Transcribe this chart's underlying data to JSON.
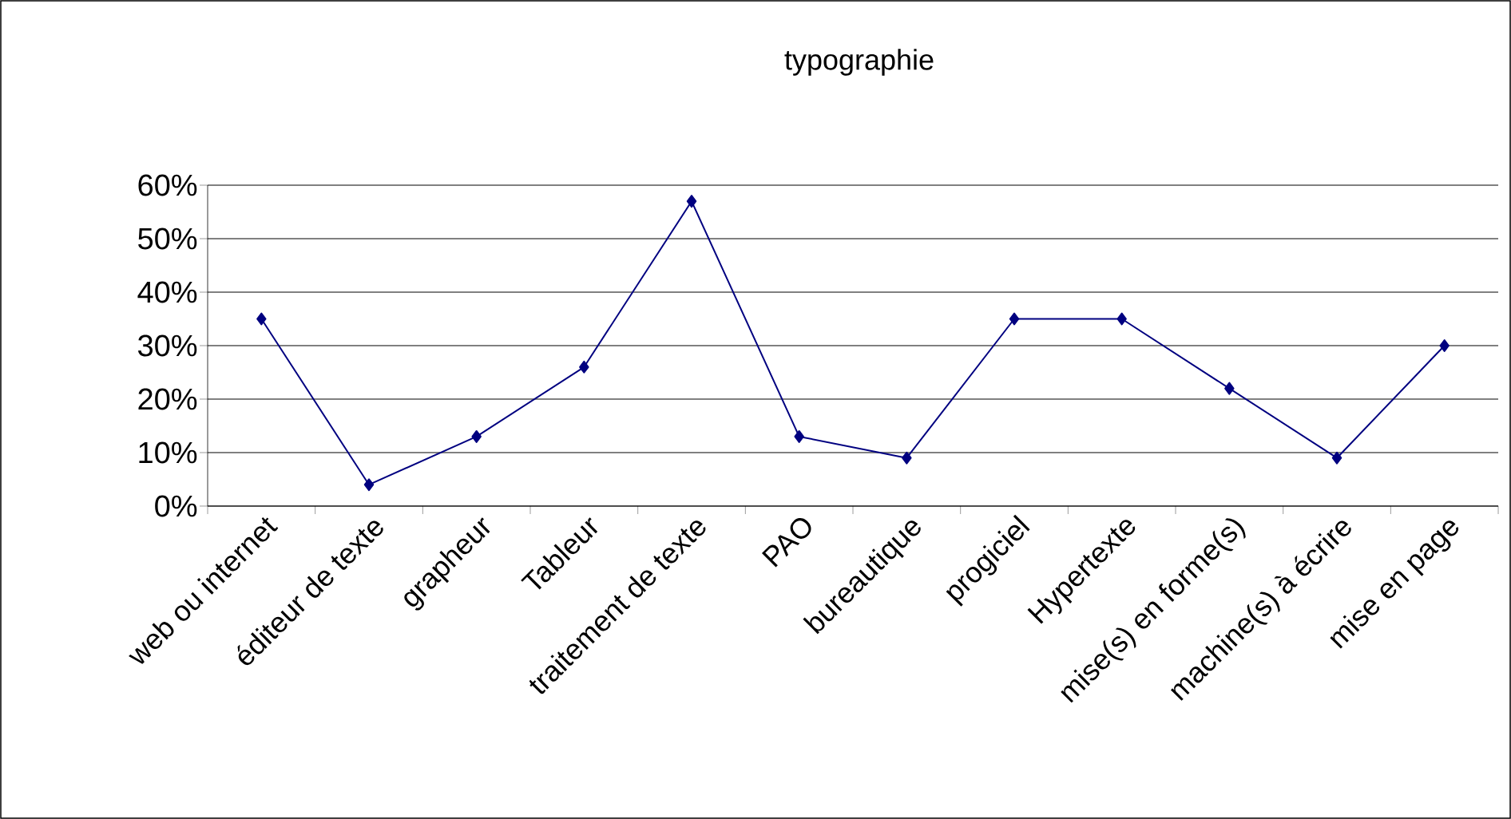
{
  "chart_data": {
    "type": "line",
    "title": "typographie",
    "categories": [
      "web ou internet",
      "éditeur de texte",
      "grapheur",
      "Tableur",
      "traitement de texte",
      "PAO",
      "bureautique",
      "progiciel",
      "Hypertexte",
      "mise(s) en forme(s)",
      "machine(s) à écrire",
      "mise en page"
    ],
    "series": [
      {
        "color": "#000080",
        "values": [
          35,
          4,
          13,
          26,
          57,
          13,
          9,
          35,
          35,
          22,
          9,
          30
        ]
      }
    ],
    "ylim": [
      0,
      60
    ],
    "yticks": [
      {
        "value": 0,
        "label": "0%"
      },
      {
        "value": 10,
        "label": "10%"
      },
      {
        "value": 20,
        "label": "20%"
      },
      {
        "value": 30,
        "label": "30%"
      },
      {
        "value": 40,
        "label": "40%"
      },
      {
        "value": 50,
        "label": "50%"
      },
      {
        "value": 60,
        "label": "60%"
      }
    ],
    "grid": "y",
    "marker": "diamond",
    "line_style": "solid"
  }
}
